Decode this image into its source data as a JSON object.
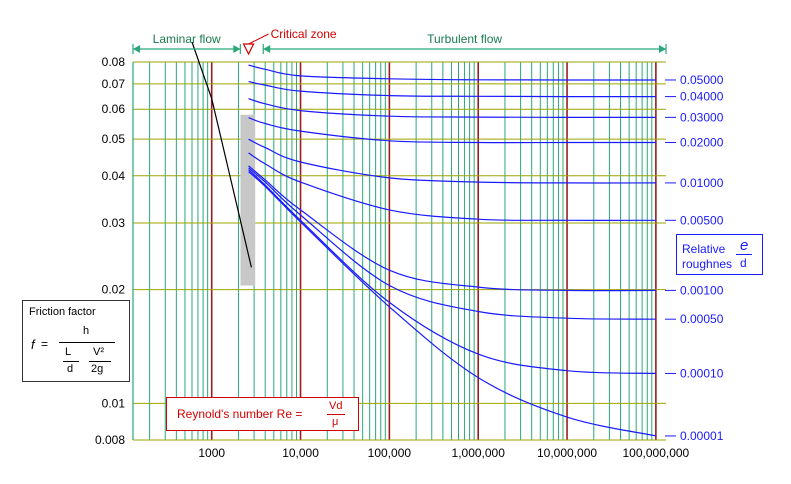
{
  "chart_data": {
    "type": "line",
    "title": "",
    "x_scale": "log",
    "y_scale": "log",
    "xlim": [
      130,
      130000000
    ],
    "ylim": [
      0.008,
      0.08
    ],
    "x_ticks": [
      1000,
      10000,
      100000,
      1000000,
      10000000,
      100000000
    ],
    "x_tick_labels": [
      "1000",
      "10,000",
      "100,000",
      "1,000,000",
      "10,000,000",
      "100,000,000"
    ],
    "y_ticks": [
      0.008,
      0.01,
      0.02,
      0.03,
      0.04,
      0.05,
      0.06,
      0.07,
      0.08
    ],
    "y_tick_labels": [
      "0.008",
      "0.01",
      "0.02",
      "0.03",
      "0.04",
      "0.05",
      "0.06",
      "0.07",
      "0.08"
    ],
    "grid": true,
    "colors": {
      "grid_vertical": "#2aa87a",
      "grid_decade": "#9b1c1c",
      "grid_horizontal": "#9ea400",
      "turbulent": "#1a1aff",
      "laminar": "#000000",
      "critical": "#d40000",
      "critical_band": "#c8c8c8"
    },
    "regions": [
      {
        "label": "Laminar flow",
        "from": 130,
        "to": 2100,
        "color": "#2aa87a"
      },
      {
        "label": "Critical zone",
        "at": 2600,
        "color": "#d40000"
      },
      {
        "label": "Turbulent flow",
        "from": 3800,
        "to": 130000000,
        "color": "#2aa87a"
      }
    ],
    "laminar_series": {
      "name": "",
      "x": [
        600,
        1000,
        1500,
        2000,
        2800
      ],
      "y": [
        0.1067,
        0.064,
        0.0427,
        0.032,
        0.0229
      ]
    },
    "critical_band": {
      "x": [
        2000,
        4000
      ],
      "y": [
        0.0205,
        0.058
      ]
    },
    "series": [
      {
        "name": "0.05000",
        "eps": 0.05,
        "x": [
          2600,
          4000,
          10000,
          100000,
          1000000,
          10000000,
          100000000
        ],
        "y": [
          0.0785,
          0.0765,
          0.0735,
          0.0722,
          0.0718,
          0.0717,
          0.0717
        ]
      },
      {
        "name": "0.04000",
        "eps": 0.04,
        "x": [
          2600,
          4000,
          10000,
          100000,
          1000000,
          10000000,
          100000000
        ],
        "y": [
          0.071,
          0.0695,
          0.067,
          0.0652,
          0.0649,
          0.0648,
          0.0648
        ]
      },
      {
        "name": "0.03000",
        "eps": 0.03,
        "x": [
          2600,
          4000,
          10000,
          100000,
          1000000,
          10000000,
          100000000
        ],
        "y": [
          0.064,
          0.062,
          0.0595,
          0.0575,
          0.0572,
          0.0571,
          0.0571
        ]
      },
      {
        "name": "0.02000",
        "eps": 0.02,
        "x": [
          2600,
          4000,
          10000,
          100000,
          1000000,
          10000000,
          100000000
        ],
        "y": [
          0.057,
          0.055,
          0.0525,
          0.0495,
          0.049,
          0.049,
          0.049
        ]
      },
      {
        "name": "0.01000",
        "eps": 0.01,
        "x": [
          2600,
          4000,
          10000,
          100000,
          1000000,
          10000000,
          100000000
        ],
        "y": [
          0.05,
          0.0475,
          0.0435,
          0.0395,
          0.0385,
          0.0383,
          0.0383
        ]
      },
      {
        "name": "0.00500",
        "eps": 0.005,
        "x": [
          2600,
          4000,
          10000,
          100000,
          1000000,
          10000000,
          100000000
        ],
        "y": [
          0.046,
          0.043,
          0.0385,
          0.0325,
          0.0307,
          0.0305,
          0.0305
        ]
      },
      {
        "name": "0.00100",
        "eps": 0.001,
        "x": [
          2600,
          4000,
          10000,
          100000,
          1000000,
          10000000,
          100000000
        ],
        "y": [
          0.0425,
          0.039,
          0.0325,
          0.0225,
          0.0203,
          0.0199,
          0.0199
        ]
      },
      {
        "name": "0.00050",
        "eps": 0.0005,
        "x": [
          2600,
          4000,
          10000,
          100000,
          1000000,
          10000000,
          100000000
        ],
        "y": [
          0.042,
          0.0385,
          0.0315,
          0.0205,
          0.0175,
          0.0168,
          0.0167
        ]
      },
      {
        "name": "0.00010",
        "eps": 0.0001,
        "x": [
          2600,
          4000,
          10000,
          100000,
          1000000,
          10000000,
          100000000
        ],
        "y": [
          0.0415,
          0.0378,
          0.0305,
          0.0185,
          0.0135,
          0.0122,
          0.012
        ]
      },
      {
        "name": "0.00001",
        "eps": 1e-05,
        "x": [
          2600,
          4000,
          10000,
          100000,
          1000000,
          10000000,
          100000000
        ],
        "y": [
          0.041,
          0.0375,
          0.0302,
          0.018,
          0.0117,
          0.0092,
          0.0082
        ]
      }
    ]
  },
  "labels": {
    "laminar": "Laminar flow",
    "critical": "Critical zone",
    "turbulent": "Turbulent flow"
  },
  "friction_box": {
    "title": "Friction factor",
    "f": "f",
    "eq": "=",
    "h": "h",
    "L": "L",
    "V2": "V²",
    "d": "d",
    "g2": "2g"
  },
  "reynolds_box": {
    "label": "Reynold's number  Re =",
    "Vd": "Vd",
    "mu": "μ"
  },
  "roughness_box": {
    "line1": "Relative",
    "line2": "roughnes",
    "e": "e",
    "d": "d"
  }
}
